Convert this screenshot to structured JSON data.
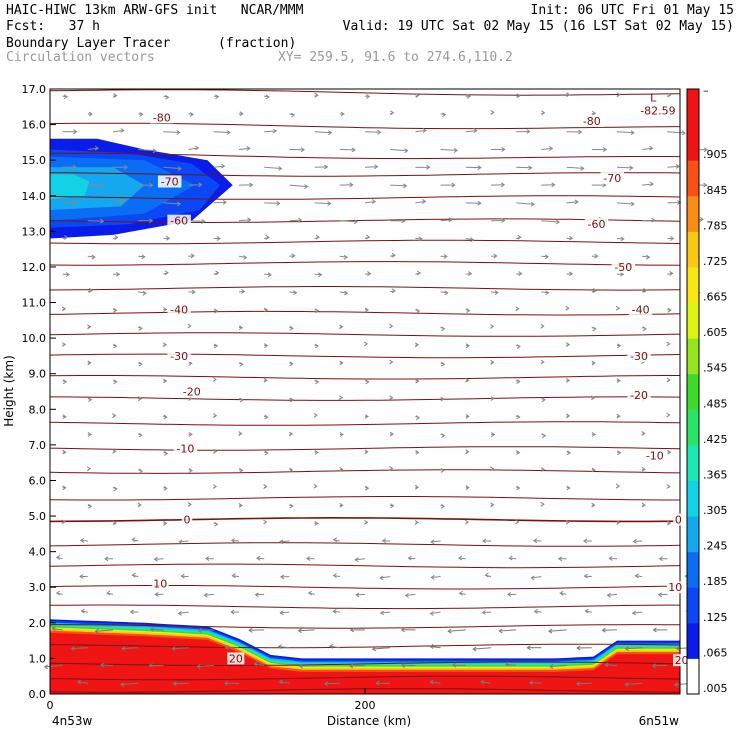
{
  "header": {
    "line1_left": "HAIC-HIWC 13km ARW-GFS init   NCAR/MMM",
    "line1_right": "Init: 06 UTC Fri 01 May 15",
    "line2_left": "Fcst:   37 h",
    "line2_right": "Valid: 19 UTC Sat 02 May 15 (16 LST Sat 02 May 15)",
    "line3_left": "Boundary Layer Tracer",
    "line3_mid": "(fraction)",
    "line4_left": "Circulation vectors",
    "line4_mid": "XY= 259.5, 91.6 to 274.6,110.2"
  },
  "chart_data": {
    "type": "heatmap",
    "xlabel": "Distance (km)",
    "ylabel": "Height (km)",
    "xlim": [
      0,
      400
    ],
    "ylim": [
      0,
      17
    ],
    "x_ticks": [
      0,
      200
    ],
    "x_tick_labels": [
      "0",
      "200"
    ],
    "x_endpoint_labels": [
      "4n53w",
      "6n51w"
    ],
    "y_ticks": [
      "0.0",
      "1.0",
      "2.0",
      "3.0",
      "4.0",
      "5.0",
      "6.0",
      "7.0",
      "8.0",
      "9.0",
      "10.0",
      "11.0",
      "12.0",
      "13.0",
      "14.0",
      "15.0",
      "16.0",
      "17.0"
    ],
    "colorbar": {
      "levels": [
        ".005",
        ".065",
        ".125",
        ".185",
        ".245",
        ".305",
        ".365",
        ".425",
        ".485",
        ".545",
        ".605",
        ".665",
        ".725",
        ".785",
        ".845",
        ".905"
      ],
      "top_label": "–",
      "colors": [
        "#ffffff",
        "#0a1de8",
        "#0a48f5",
        "#0a6ef5",
        "#14a8f0",
        "#14d2e6",
        "#1ee6b4",
        "#28e664",
        "#3cdc28",
        "#96e61e",
        "#dcf514",
        "#fae614",
        "#fac814",
        "#fa8c14",
        "#fa5014",
        "#f01414",
        "#f01414"
      ]
    },
    "contour_labels": [
      {
        "text": "-80",
        "x": 71,
        "y": 16.2
      },
      {
        "text": "-80",
        "x": 344,
        "y": 16.1
      },
      {
        "text": "-70",
        "x": 76,
        "y": 14.4
      },
      {
        "text": "-70",
        "x": 357,
        "y": 14.5
      },
      {
        "text": "-60",
        "x": 82,
        "y": 13.3
      },
      {
        "text": "-60",
        "x": 347,
        "y": 13.2
      },
      {
        "text": "-50",
        "x": 364,
        "y": 12.0
      },
      {
        "text": "-40",
        "x": 82,
        "y": 10.8
      },
      {
        "text": "-40",
        "x": 375,
        "y": 10.8
      },
      {
        "text": "-30",
        "x": 82,
        "y": 9.5
      },
      {
        "text": "-30",
        "x": 374,
        "y": 9.5
      },
      {
        "text": "-20",
        "x": 90,
        "y": 8.5
      },
      {
        "text": "-20",
        "x": 374,
        "y": 8.4
      },
      {
        "text": "-10",
        "x": 86,
        "y": 6.9
      },
      {
        "text": "-10",
        "x": 384,
        "y": 6.7
      },
      {
        "text": "0",
        "x": 87,
        "y": 4.9
      },
      {
        "text": "0",
        "x": 399,
        "y": 4.9
      },
      {
        "text": "10",
        "x": 70,
        "y": 3.1
      },
      {
        "text": "10",
        "x": 397,
        "y": 3.0
      },
      {
        "text": "20",
        "x": 118,
        "y": 1.0
      },
      {
        "text": "20",
        "x": 401,
        "y": 0.95
      },
      {
        "text": "-82.59",
        "x": 386,
        "y": 16.4
      }
    ],
    "low_label": "L",
    "tracer_surface_top_km": [
      [
        0,
        2.1
      ],
      [
        60,
        2.0
      ],
      [
        100,
        1.9
      ],
      [
        120,
        1.55
      ],
      [
        140,
        1.1
      ],
      [
        160,
        1.0
      ],
      [
        200,
        1.0
      ],
      [
        320,
        1.0
      ],
      [
        345,
        1.05
      ],
      [
        360,
        1.5
      ],
      [
        380,
        1.5
      ],
      [
        400,
        1.5
      ]
    ],
    "upper_tracer_max": 0.305
  }
}
